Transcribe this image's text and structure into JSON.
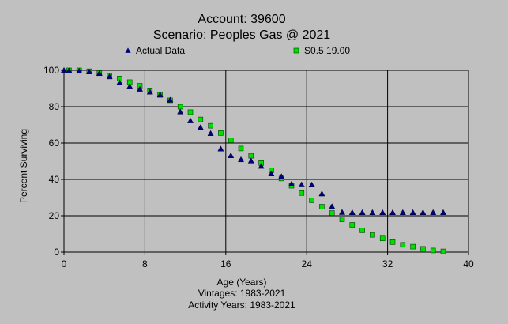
{
  "chart_data": {
    "type": "scatter",
    "title": "Account: 39600",
    "subtitle": "Scenario: Peoples Gas @ 2021",
    "xlabel": "Age (Years)",
    "ylabel": "Percent Surviving",
    "footer": [
      "Vintages: 1983-2021",
      "Activity Years: 1983-2021"
    ],
    "xlim": [
      0,
      40
    ],
    "ylim": [
      0,
      100
    ],
    "xticks": [
      "0",
      "8",
      "16",
      "24",
      "32",
      "40"
    ],
    "yticks": [
      "0",
      "20",
      "40",
      "60",
      "80",
      "100"
    ],
    "grid": true,
    "legend_position": "top",
    "series": [
      {
        "name": "Actual Data",
        "marker": "triangle",
        "color": "#000080",
        "x": [
          0,
          0.5,
          1.5,
          2.5,
          3.5,
          4.5,
          5.5,
          6.5,
          7.5,
          8.5,
          9.5,
          10.5,
          11.5,
          12.5,
          13.5,
          14.5,
          15.5,
          16.5,
          17.5,
          18.5,
          19.5,
          20.5,
          21.5,
          22.5,
          23.5,
          24.5,
          25.5,
          26.5,
          27.5,
          28.5,
          29.5,
          30.5,
          31.5,
          32.5,
          33.5,
          34.5,
          35.5,
          36.5,
          37.5
        ],
        "y": [
          100,
          99.8,
          99.6,
          99.2,
          98.3,
          96.5,
          93.3,
          91.2,
          89.7,
          88.1,
          86.5,
          83.7,
          77.2,
          72.3,
          68.6,
          65.3,
          56.8,
          53.1,
          50.9,
          50.2,
          47.3,
          43.1,
          41.6,
          37.5,
          37.1,
          37,
          32.1,
          25.1,
          21.9,
          21.8,
          21.8,
          21.8,
          21.8,
          21.8,
          21.8,
          21.8,
          21.8,
          21.8,
          21.8
        ]
      },
      {
        "name": "S0.5 19.00",
        "marker": "square",
        "color": "#00e000",
        "x": [
          0.5,
          1.5,
          2.5,
          3.5,
          4.5,
          5.5,
          6.5,
          7.5,
          8.5,
          9.5,
          10.5,
          11.5,
          12.5,
          13.5,
          14.5,
          15.5,
          16.5,
          17.5,
          18.5,
          19.5,
          20.5,
          21.5,
          22.5,
          23.5,
          24.5,
          25.5,
          26.5,
          27.5,
          28.5,
          29.5,
          30.5,
          31.5,
          32.5,
          33.5,
          34.5,
          35.5,
          36.5,
          37.5
        ],
        "y": [
          100,
          100,
          99.5,
          98.5,
          97,
          95.5,
          93.5,
          91.5,
          89,
          86.5,
          83.5,
          80,
          77,
          73,
          69.5,
          65.5,
          61.5,
          57,
          53,
          49,
          45,
          40.5,
          36.5,
          32.5,
          28.5,
          25,
          21.5,
          18,
          15,
          12,
          9.5,
          7.5,
          5.5,
          4,
          3,
          1.8,
          0.9,
          0.4
        ]
      }
    ]
  }
}
